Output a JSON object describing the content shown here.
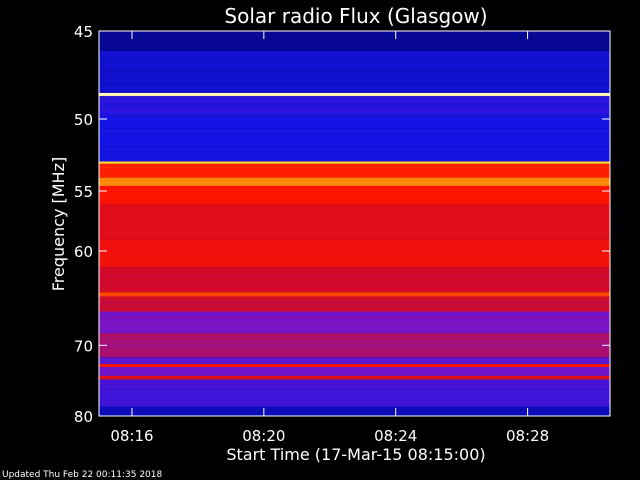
{
  "chart_data": {
    "type": "heatmap",
    "title": "Solar radio Flux (Glasgow)",
    "xlabel": "Start Time (17-Mar-15 08:15:00)",
    "ylabel": "Frequency [MHz]",
    "x_unit": "time (HH:MM)",
    "xlim": [
      "08:15:00",
      "08:30:30"
    ],
    "ylim": [
      45,
      80
    ],
    "y_scale": "reciprocal",
    "y_direction": "top-to-bottom",
    "x_ticks": [
      "08:16",
      "08:20",
      "08:24",
      "08:28"
    ],
    "y_ticks": [
      45,
      50,
      55,
      60,
      70,
      80
    ],
    "colormap": "blue-red-yellow-white",
    "bands": [
      {
        "freq_mhz": [
          45.0,
          46.0
        ],
        "level": 0.05
      },
      {
        "freq_mhz": [
          46.0,
          48.4
        ],
        "level": 0.12
      },
      {
        "freq_mhz": [
          48.4,
          48.6
        ],
        "level": 0.98
      },
      {
        "freq_mhz": [
          48.6,
          49.8
        ],
        "level": 0.18
      },
      {
        "freq_mhz": [
          49.8,
          52.8
        ],
        "level": 0.15
      },
      {
        "freq_mhz": [
          52.8,
          53.0
        ],
        "level": 0.88
      },
      {
        "freq_mhz": [
          53.0,
          54.0
        ],
        "level": 0.62
      },
      {
        "freq_mhz": [
          54.0,
          54.6
        ],
        "level": 0.78
      },
      {
        "freq_mhz": [
          54.6,
          56.0
        ],
        "level": 0.6
      },
      {
        "freq_mhz": [
          56.0,
          59.0
        ],
        "level": 0.5
      },
      {
        "freq_mhz": [
          59.0,
          61.5
        ],
        "level": 0.55
      },
      {
        "freq_mhz": [
          61.5,
          64.0
        ],
        "level": 0.45
      },
      {
        "freq_mhz": [
          64.0,
          64.4
        ],
        "level": 0.68
      },
      {
        "freq_mhz": [
          64.4,
          66.0
        ],
        "level": 0.44
      },
      {
        "freq_mhz": [
          66.0,
          68.5
        ],
        "level": 0.3
      },
      {
        "freq_mhz": [
          68.5,
          71.5
        ],
        "level": 0.38
      },
      {
        "freq_mhz": [
          71.5,
          72.4
        ],
        "level": 0.26
      },
      {
        "freq_mhz": [
          72.4,
          72.8
        ],
        "level": 0.58
      },
      {
        "freq_mhz": [
          72.8,
          74.0
        ],
        "level": 0.3
      },
      {
        "freq_mhz": [
          74.0,
          74.5
        ],
        "level": 0.52
      },
      {
        "freq_mhz": [
          74.5,
          78.5
        ],
        "level": 0.22
      },
      {
        "freq_mhz": [
          78.5,
          80.0
        ],
        "level": 0.1
      }
    ],
    "footer": "Updated Thu Feb 22 00:11:35 2018"
  }
}
